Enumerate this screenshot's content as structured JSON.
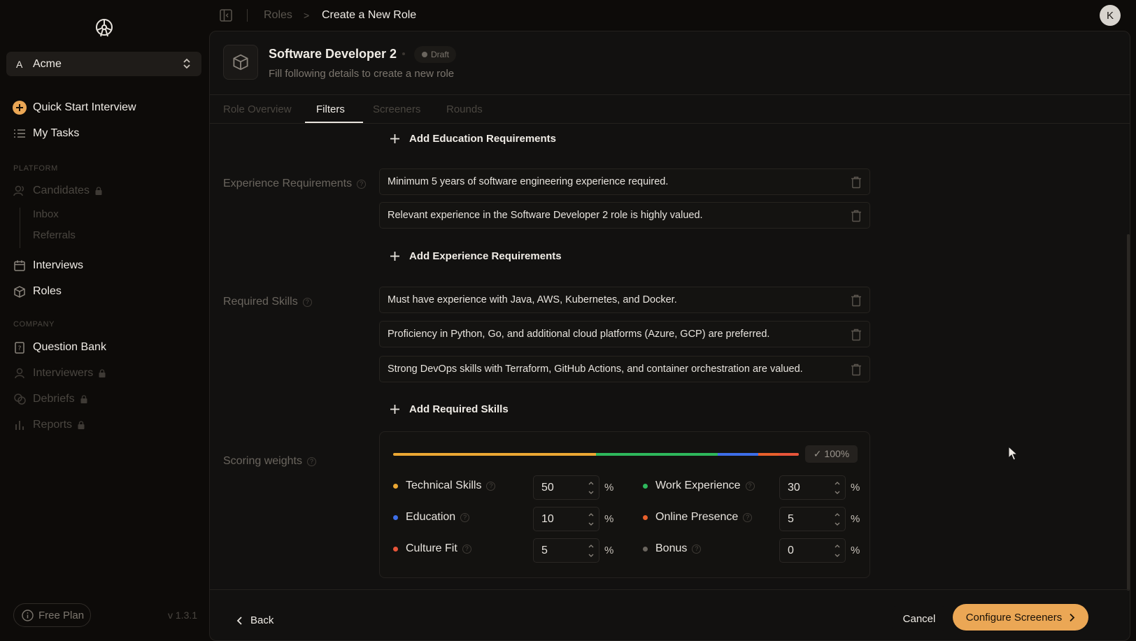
{
  "sidebar": {
    "org": {
      "initial": "A",
      "name": "Acme"
    },
    "quick_start": "Quick Start Interview",
    "my_tasks": "My Tasks",
    "platform_label": "PLATFORM",
    "candidates": "Candidates",
    "inbox": "Inbox",
    "referrals": "Referrals",
    "interviews": "Interviews",
    "roles": "Roles",
    "company_label": "COMPANY",
    "question_bank": "Question Bank",
    "interviewers": "Interviewers",
    "debriefs": "Debriefs",
    "reports": "Reports",
    "free_plan": "Free Plan",
    "version": "v 1.3.1"
  },
  "breadcrumb": {
    "parent": "Roles",
    "arrow": ">",
    "current": "Create a New Role"
  },
  "user": {
    "avatar_initial": "K"
  },
  "role": {
    "title": "Software Developer 2",
    "status": "Draft",
    "subtitle": "Fill following details to create a new role"
  },
  "tabs": [
    {
      "label": "Role Overview"
    },
    {
      "label": "Filters"
    },
    {
      "label": "Screeners"
    },
    {
      "label": "Rounds"
    }
  ],
  "education": {
    "add_label": "Add Education Requirements"
  },
  "experience": {
    "label": "Experience Requirements",
    "items": [
      "Minimum 5 years of software engineering experience required.",
      "Relevant experience in the Software Developer 2 role is highly valued."
    ],
    "add_label": "Add Experience Requirements"
  },
  "skills": {
    "label": "Required Skills",
    "items": [
      "Must have experience with Java, AWS, Kubernetes, and Docker.",
      "Proficiency in Python, Go, and additional cloud platforms (Azure, GCP) are preferred.",
      "Strong DevOps skills with Terraform, GitHub Actions, and container orchestration are valued."
    ],
    "add_label": "Add Required Skills"
  },
  "scoring": {
    "label": "Scoring weights",
    "total": "✓ 100%",
    "percent_sign": "%",
    "weights": [
      {
        "name": "Technical Skills",
        "value": "50",
        "color": "#eba733"
      },
      {
        "name": "Work Experience",
        "value": "30",
        "color": "#2eb85c"
      },
      {
        "name": "Education",
        "value": "10",
        "color": "#3d6ee8"
      },
      {
        "name": "Online Presence",
        "value": "5",
        "color": "#e8602c"
      },
      {
        "name": "Culture Fit",
        "value": "5",
        "color": "#e8553a"
      },
      {
        "name": "Bonus",
        "value": "0",
        "color": "#6a655e"
      }
    ]
  },
  "footer": {
    "back": "Back",
    "cancel": "Cancel",
    "configure": "Configure Screeners"
  },
  "colors": {
    "accent": "#eba755",
    "background": "#0d0b09",
    "panel": "#121110"
  }
}
